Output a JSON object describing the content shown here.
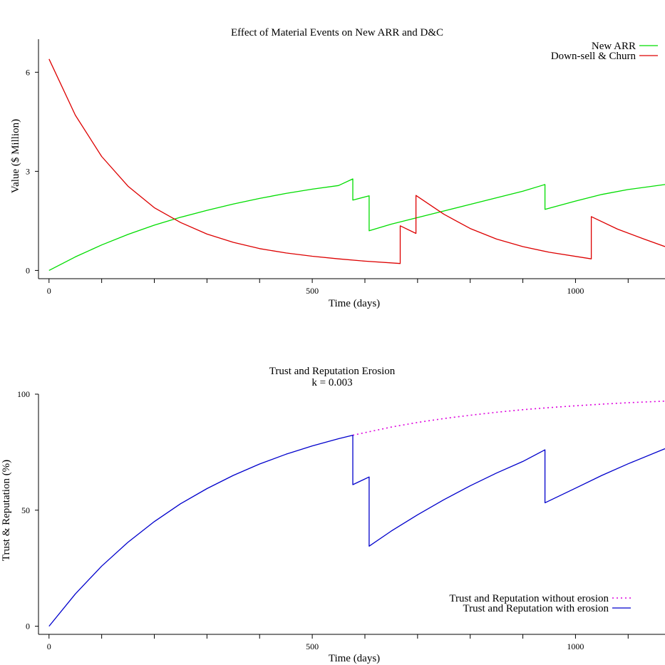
{
  "chart_data": [
    {
      "type": "line",
      "title": "Effect of Material Events on New ARR and D&C",
      "xlabel": "Time (days)",
      "ylabel": "Value ($ Million)",
      "xlim": [
        -20,
        1170
      ],
      "ylim": [
        -0.25,
        7.0
      ],
      "xticks_major": [
        0,
        500,
        1000
      ],
      "xticks_minor": [
        100,
        200,
        300,
        400,
        600,
        700,
        800,
        900,
        1100
      ],
      "yticks": [
        0,
        3,
        6
      ],
      "legend_position": "top-right",
      "series": [
        {
          "name": "New ARR",
          "color": "#00dd00",
          "style": "solid",
          "points": [
            [
              0,
              0
            ],
            [
              50,
              0.41
            ],
            [
              100,
              0.77
            ],
            [
              150,
              1.09
            ],
            [
              200,
              1.37
            ],
            [
              250,
              1.61
            ],
            [
              300,
              1.82
            ],
            [
              350,
              2.01
            ],
            [
              400,
              2.18
            ],
            [
              450,
              2.33
            ],
            [
              500,
              2.46
            ],
            [
              550,
              2.57
            ],
            [
              577,
              2.77
            ],
            [
              577,
              2.13
            ],
            [
              608,
              2.26
            ],
            [
              608,
              1.2
            ],
            [
              650,
              1.4
            ],
            [
              700,
              1.6
            ],
            [
              750,
              1.8
            ],
            [
              800,
              2.0
            ],
            [
              850,
              2.2
            ],
            [
              900,
              2.4
            ],
            [
              942,
              2.6
            ],
            [
              942,
              1.85
            ],
            [
              1000,
              2.1
            ],
            [
              1050,
              2.3
            ],
            [
              1100,
              2.45
            ],
            [
              1170,
              2.6
            ]
          ]
        },
        {
          "name": "Down-sell & Churn",
          "color": "#dd0000",
          "style": "solid",
          "points": [
            [
              0,
              6.4
            ],
            [
              50,
              4.7
            ],
            [
              100,
              3.45
            ],
            [
              150,
              2.55
            ],
            [
              200,
              1.9
            ],
            [
              250,
              1.45
            ],
            [
              300,
              1.1
            ],
            [
              350,
              0.85
            ],
            [
              400,
              0.66
            ],
            [
              450,
              0.53
            ],
            [
              500,
              0.43
            ],
            [
              550,
              0.35
            ],
            [
              600,
              0.28
            ],
            [
              667,
              0.21
            ],
            [
              667,
              1.35
            ],
            [
              697,
              1.12
            ],
            [
              697,
              2.27
            ],
            [
              750,
              1.7
            ],
            [
              800,
              1.27
            ],
            [
              850,
              0.95
            ],
            [
              900,
              0.72
            ],
            [
              950,
              0.55
            ],
            [
              1030,
              0.35
            ],
            [
              1030,
              1.63
            ],
            [
              1080,
              1.25
            ],
            [
              1130,
              0.95
            ],
            [
              1170,
              0.72
            ]
          ]
        }
      ]
    },
    {
      "type": "line",
      "title": "Trust and Reputation Erosion",
      "subtitle": "k = 0.003",
      "xlabel": "Time (days)",
      "ylabel": "Trust & Reputation (%)",
      "xlim": [
        -20,
        1170
      ],
      "ylim": [
        -3.5,
        100
      ],
      "xticks_major": [
        0,
        500,
        1000
      ],
      "xticks_minor": [
        100,
        200,
        300,
        400,
        600,
        700,
        800,
        900,
        1100
      ],
      "yticks": [
        0,
        50,
        100
      ],
      "legend_position": "bottom-right",
      "series": [
        {
          "name": "Trust and Reputation without erosion",
          "color": "#dd00dd",
          "style": "dotted",
          "points": [
            [
              577,
              82.3
            ],
            [
              650,
              85.8
            ],
            [
              700,
              87.8
            ],
            [
              750,
              89.5
            ],
            [
              800,
              90.9
            ],
            [
              850,
              92.2
            ],
            [
              900,
              93.3
            ],
            [
              950,
              94.2
            ],
            [
              1000,
              95.0
            ],
            [
              1050,
              95.7
            ],
            [
              1100,
              96.3
            ],
            [
              1170,
              97.0
            ]
          ]
        },
        {
          "name": "Trust and Reputation with erosion",
          "color": "#0000cc",
          "style": "solid",
          "points": [
            [
              0,
              0
            ],
            [
              50,
              13.9
            ],
            [
              100,
              25.9
            ],
            [
              150,
              36.2
            ],
            [
              200,
              45.1
            ],
            [
              250,
              52.8
            ],
            [
              300,
              59.3
            ],
            [
              350,
              65.0
            ],
            [
              400,
              69.9
            ],
            [
              450,
              74.1
            ],
            [
              500,
              77.7
            ],
            [
              550,
              80.8
            ],
            [
              577,
              82.3
            ],
            [
              577,
              61.0
            ],
            [
              608,
              64.3
            ],
            [
              608,
              34.5
            ],
            [
              650,
              41.0
            ],
            [
              700,
              48.0
            ],
            [
              750,
              54.5
            ],
            [
              800,
              60.5
            ],
            [
              850,
              66.0
            ],
            [
              900,
              71.0
            ],
            [
              942,
              76.0
            ],
            [
              942,
              53.2
            ],
            [
              1000,
              59.5
            ],
            [
              1050,
              65.0
            ],
            [
              1100,
              70.0
            ],
            [
              1170,
              76.5
            ]
          ]
        }
      ]
    }
  ]
}
